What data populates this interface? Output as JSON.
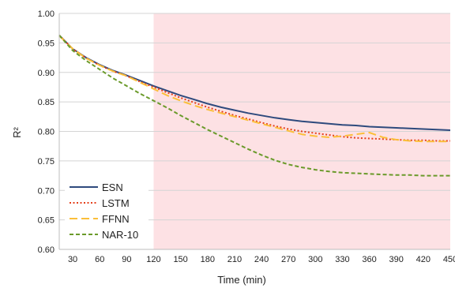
{
  "chart_data": {
    "type": "line",
    "title": "",
    "xlabel": "Time (min)",
    "ylabel": "R²",
    "xlim": [
      15,
      450
    ],
    "ylim": [
      0.6,
      1.0
    ],
    "x_ticks": [
      30,
      60,
      90,
      120,
      150,
      180,
      210,
      240,
      270,
      300,
      330,
      360,
      390,
      420,
      450
    ],
    "y_ticks": [
      0.6,
      0.65,
      0.7,
      0.75,
      0.8,
      0.85,
      0.9,
      0.95,
      1.0
    ],
    "shaded_region": {
      "x_start": 120,
      "x_end": 450,
      "color": "#fde1e4"
    },
    "grid": "horizontal",
    "legend_position": "bottom-left",
    "x": [
      15,
      30,
      45,
      60,
      75,
      90,
      105,
      120,
      135,
      150,
      165,
      180,
      195,
      210,
      225,
      240,
      255,
      270,
      285,
      300,
      315,
      330,
      345,
      360,
      375,
      390,
      405,
      420,
      435,
      450
    ],
    "series": [
      {
        "name": "ESN",
        "color": "#2e4a7d",
        "dash": "solid",
        "values": [
          0.963,
          0.94,
          0.925,
          0.913,
          0.903,
          0.895,
          0.886,
          0.877,
          0.869,
          0.861,
          0.854,
          0.847,
          0.841,
          0.836,
          0.831,
          0.827,
          0.823,
          0.82,
          0.817,
          0.815,
          0.813,
          0.811,
          0.81,
          0.808,
          0.807,
          0.806,
          0.805,
          0.804,
          0.803,
          0.802
        ]
      },
      {
        "name": "LSTM",
        "color": "#e4401c",
        "dash": "dotted",
        "values": [
          0.963,
          0.94,
          0.924,
          0.912,
          0.902,
          0.894,
          0.884,
          0.875,
          0.866,
          0.857,
          0.849,
          0.841,
          0.834,
          0.827,
          0.821,
          0.815,
          0.809,
          0.804,
          0.8,
          0.797,
          0.794,
          0.791,
          0.789,
          0.788,
          0.787,
          0.786,
          0.785,
          0.785,
          0.784,
          0.784
        ]
      },
      {
        "name": "FFNN",
        "color": "#fbbf3a",
        "dash": "dashed",
        "values": [
          0.962,
          0.94,
          0.924,
          0.912,
          0.902,
          0.894,
          0.883,
          0.872,
          0.861,
          0.852,
          0.844,
          0.837,
          0.831,
          0.825,
          0.819,
          0.813,
          0.807,
          0.801,
          0.795,
          0.792,
          0.79,
          0.792,
          0.795,
          0.798,
          0.79,
          0.786,
          0.784,
          0.783,
          0.783,
          0.783
        ]
      },
      {
        "name": "NAR-10",
        "color": "#6a9a2a",
        "dash": "short-dashed",
        "values": [
          0.963,
          0.937,
          0.92,
          0.905,
          0.89,
          0.877,
          0.864,
          0.852,
          0.84,
          0.827,
          0.815,
          0.803,
          0.792,
          0.781,
          0.77,
          0.76,
          0.751,
          0.744,
          0.739,
          0.735,
          0.732,
          0.73,
          0.729,
          0.728,
          0.727,
          0.726,
          0.726,
          0.725,
          0.725,
          0.725
        ]
      }
    ]
  }
}
